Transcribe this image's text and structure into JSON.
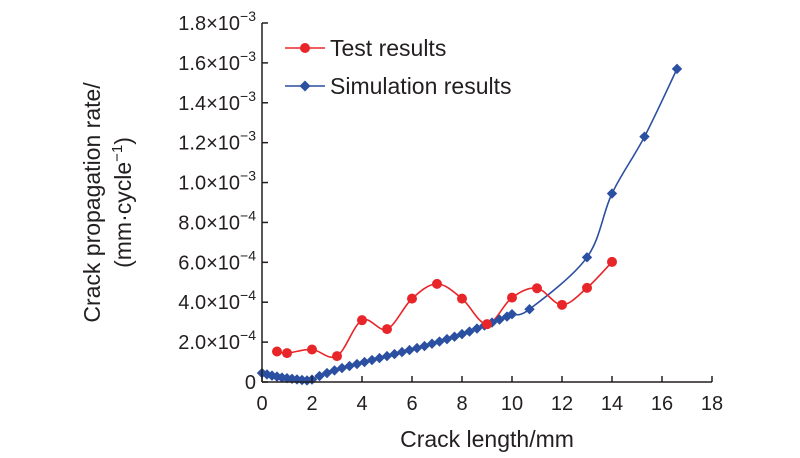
{
  "chart_data": {
    "type": "line",
    "xlabel": "Crack length/mm",
    "ylabel_line1": "Crack propagation rate/",
    "ylabel_line2": "(mm·cycle",
    "ylabel_sup": "−1",
    "ylabel_close": ")",
    "xlim": [
      0,
      18
    ],
    "ylim": [
      0,
      0.0018
    ],
    "xticks": [
      0,
      2,
      4,
      6,
      8,
      10,
      12,
      14,
      16,
      18
    ],
    "yticks": [
      {
        "value": 0,
        "mant": "0",
        "exp": ""
      },
      {
        "value": 0.0002,
        "mant": "2.0×10",
        "exp": "−4"
      },
      {
        "value": 0.0004,
        "mant": "4.0×10",
        "exp": "−4"
      },
      {
        "value": 0.0006,
        "mant": "6.0×10",
        "exp": "−4"
      },
      {
        "value": 0.0008,
        "mant": "8.0×10",
        "exp": "−4"
      },
      {
        "value": 0.001,
        "mant": "1.0×10",
        "exp": "−3"
      },
      {
        "value": 0.0012,
        "mant": "1.2×10",
        "exp": "−3"
      },
      {
        "value": 0.0014,
        "mant": "1.4×10",
        "exp": "−3"
      },
      {
        "value": 0.0016,
        "mant": "1.6×10",
        "exp": "−3"
      },
      {
        "value": 0.0018,
        "mant": "1.8×10",
        "exp": "−3"
      }
    ],
    "legend_position": "top-left",
    "grid": false,
    "series": [
      {
        "name": "Test results",
        "color": "#e8262a",
        "marker": "circle",
        "x": [
          0.6,
          1.0,
          2.0,
          3.0,
          4.0,
          5.0,
          6.0,
          7.0,
          8.0,
          9.0,
          10.0,
          11.0,
          12.0,
          13.0,
          14.0
        ],
        "y": [
          0.000153,
          0.000145,
          0.000163,
          0.00013,
          0.00031,
          0.000265,
          0.000418,
          0.000492,
          0.000418,
          0.00029,
          0.000423,
          0.00047,
          0.000387,
          0.000472,
          0.000602
        ]
      },
      {
        "name": "Simulation results",
        "color": "#2b4fa1",
        "marker": "diamond",
        "x": [
          0.0,
          0.2,
          0.4,
          0.6,
          0.8,
          1.0,
          1.2,
          1.4,
          1.6,
          1.8,
          2.0,
          2.3,
          2.6,
          2.9,
          3.2,
          3.5,
          3.8,
          4.1,
          4.4,
          4.7,
          5.0,
          5.3,
          5.6,
          5.9,
          6.2,
          6.5,
          6.8,
          7.1,
          7.4,
          7.7,
          8.0,
          8.3,
          8.6,
          8.9,
          9.2,
          9.5,
          9.8,
          10.0,
          10.7,
          13.0,
          14.0,
          15.3,
          16.6
        ],
        "y": [
          4.5e-05,
          3.8e-05,
          3.2e-05,
          2.7e-05,
          2.2e-05,
          1.9e-05,
          1.6e-05,
          1.3e-05,
          1e-05,
          8e-06,
          1.2e-05,
          3e-05,
          4.5e-05,
          5.8e-05,
          7e-05,
          8e-05,
          9e-05,
          0.0001,
          0.00011,
          0.00012,
          0.00013,
          0.00014,
          0.00015,
          0.00016,
          0.00017,
          0.00018,
          0.000192,
          0.000203,
          0.000215,
          0.000227,
          0.00024,
          0.000253,
          0.000268,
          0.000283,
          0.000298,
          0.000313,
          0.000328,
          0.00034,
          0.000365,
          0.000625,
          0.000945,
          0.00123,
          0.00157
        ]
      }
    ]
  }
}
